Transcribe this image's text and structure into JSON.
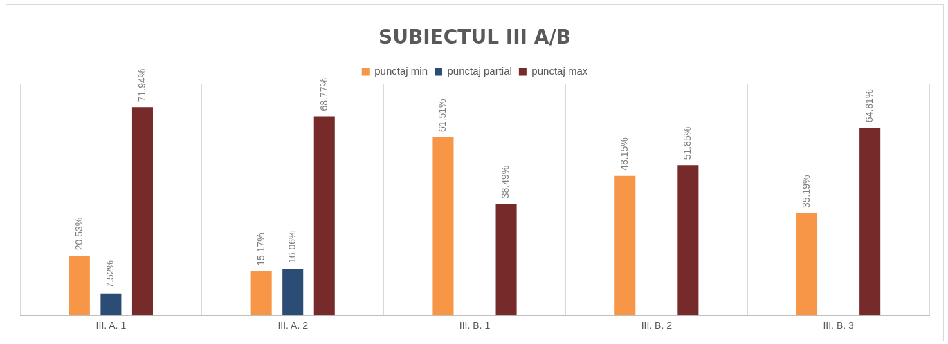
{
  "chart_data": {
    "type": "bar",
    "title": "SUBIECTUL III A/B",
    "categories": [
      "III. A. 1",
      "III. A. 2",
      "III. B. 1",
      "III. B. 2",
      "III. B. 3"
    ],
    "series": [
      {
        "name": "punctaj min",
        "color": "#f79646",
        "values": [
          20.53,
          15.17,
          61.51,
          48.15,
          35.19
        ],
        "value_labels": [
          "20.53%",
          "15.17%",
          "61.51%",
          "48.15%",
          "35.19%"
        ]
      },
      {
        "name": "punctaj partial",
        "color": "#2b4c74",
        "values": [
          7.52,
          16.06,
          null,
          null,
          null
        ],
        "value_labels": [
          "7.52%",
          "16.06%",
          null,
          null,
          null
        ]
      },
      {
        "name": "punctaj max",
        "color": "#772a2a",
        "values": [
          71.94,
          68.77,
          38.49,
          51.85,
          64.81
        ],
        "value_labels": [
          "71.94%",
          "68.77%",
          "38.49%",
          "51.85%",
          "64.81%"
        ]
      }
    ],
    "grid": "x",
    "legend": "top"
  }
}
